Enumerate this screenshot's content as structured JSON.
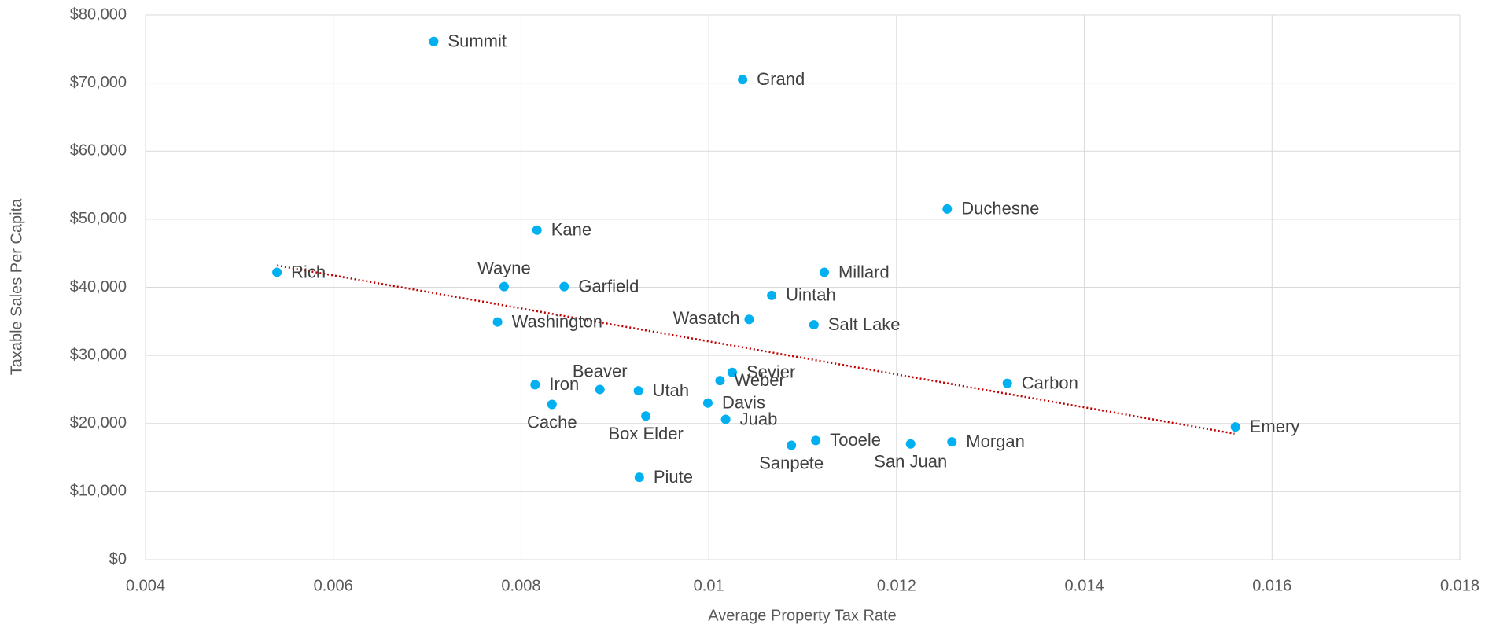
{
  "chart_data": {
    "type": "scatter",
    "x_label": "Average Property Tax Rate",
    "y_label": "Taxable Sales Per Capita",
    "color": "#00b0f0",
    "grid": true,
    "xlim": [
      0.004,
      0.018
    ],
    "xticks": [
      0.004,
      0.006,
      0.008,
      0.01,
      0.012,
      0.014,
      0.016,
      0.018
    ],
    "ylim": [
      0,
      80000
    ],
    "yticks": [
      {
        "value": 0,
        "label": "$0"
      },
      {
        "value": 10000,
        "label": "$10,000"
      },
      {
        "value": 20000,
        "label": "$20,000"
      },
      {
        "value": 30000,
        "label": "$30,000"
      },
      {
        "value": 40000,
        "label": "$40,000"
      },
      {
        "value": 50000,
        "label": "$50,000"
      },
      {
        "value": 60000,
        "label": "$60,000"
      },
      {
        "value": 70000,
        "label": "$70,000"
      },
      {
        "value": 80000,
        "label": "$80,000"
      }
    ],
    "labels": [
      "Rich",
      "Summit",
      "Grand",
      "Duchesne",
      "Kane",
      "Millard",
      "Wayne",
      "Garfield",
      "Uintah",
      "Wasatch",
      "Washington",
      "Salt Lake",
      "Sevier",
      "Weber",
      "Carbon",
      "Iron",
      "Beaver",
      "Utah",
      "Davis",
      "Cache",
      "Box Elder",
      "Juab",
      "Emery",
      "Tooele",
      "Morgan",
      "San Juan",
      "Sanpete",
      "Piute"
    ],
    "x": [
      0.0054,
      0.00707,
      0.01036,
      0.01254,
      0.00817,
      0.01123,
      0.00782,
      0.00846,
      0.01067,
      0.01043,
      0.00775,
      0.01112,
      0.01025,
      0.01012,
      0.01318,
      0.00815,
      0.00884,
      0.00925,
      0.00999,
      0.00833,
      0.00933,
      0.01018,
      0.01561,
      0.01114,
      0.01259,
      0.01215,
      0.01088,
      0.00926
    ],
    "y": [
      42200,
      76100,
      70500,
      51500,
      48400,
      42200,
      40100,
      40100,
      38800,
      35300,
      34900,
      34500,
      27500,
      26300,
      25900,
      25700,
      25000,
      24800,
      23000,
      22800,
      21100,
      20600,
      19500,
      17500,
      17300,
      17000,
      16800,
      12100
    ],
    "trendline": {
      "color": "#c00000",
      "x": [
        0.0054,
        0.0156
      ],
      "y": [
        43200,
        18500
      ]
    }
  }
}
